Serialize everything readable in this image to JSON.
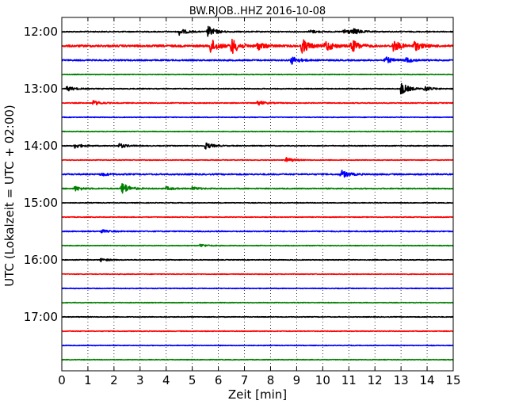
{
  "chart_data": {
    "type": "line",
    "title": "BW.RJOB..HHZ 2016-10-08",
    "xlabel": "Zeit  [min]",
    "ylabel": "UTC (Lokalzeit = UTC + 02:00)",
    "xlim": [
      0,
      15
    ],
    "x_ticks": [
      0,
      1,
      2,
      3,
      4,
      5,
      6,
      7,
      8,
      9,
      10,
      11,
      12,
      13,
      14,
      15
    ],
    "y_tick_labels": [
      "12:00",
      "13:00",
      "14:00",
      "15:00",
      "16:00",
      "17:00"
    ],
    "grid": "vertical dotted",
    "row_colors": [
      "#000000",
      "#ff0000",
      "#0000ff",
      "#008000"
    ],
    "traces": [
      {
        "start": "12:00",
        "color": "black",
        "noise": 0.6,
        "events": [
          {
            "t": 4.5,
            "amp": 4
          },
          {
            "t": 5.6,
            "amp": 7
          },
          {
            "t": 9.5,
            "amp": 2
          },
          {
            "t": 10.8,
            "amp": 4
          },
          {
            "t": 11.2,
            "amp": 3
          }
        ]
      },
      {
        "start": "12:15",
        "color": "red",
        "noise": 1.2,
        "events": [
          {
            "t": 5.7,
            "amp": 9
          },
          {
            "t": 6.5,
            "amp": 10
          },
          {
            "t": 7.5,
            "amp": 5
          },
          {
            "t": 9.2,
            "amp": 9
          },
          {
            "t": 10.1,
            "amp": 7
          },
          {
            "t": 11.1,
            "amp": 8
          },
          {
            "t": 12.7,
            "amp": 7
          },
          {
            "t": 13.5,
            "amp": 6
          }
        ]
      },
      {
        "start": "12:30",
        "color": "blue",
        "noise": 0.8,
        "events": [
          {
            "t": 8.8,
            "amp": 5
          },
          {
            "t": 12.4,
            "amp": 4
          },
          {
            "t": 13.2,
            "amp": 3
          }
        ]
      },
      {
        "start": "12:45",
        "color": "green",
        "noise": 0.4,
        "events": []
      },
      {
        "start": "13:00",
        "color": "black",
        "noise": 0.5,
        "events": [
          {
            "t": 0.2,
            "amp": 3
          },
          {
            "t": 13.0,
            "amp": 8
          },
          {
            "t": 13.9,
            "amp": 3
          }
        ]
      },
      {
        "start": "13:15",
        "color": "red",
        "noise": 0.5,
        "events": [
          {
            "t": 1.2,
            "amp": 3
          },
          {
            "t": 7.5,
            "amp": 3
          }
        ]
      },
      {
        "start": "13:30",
        "color": "blue",
        "noise": 0.4,
        "events": []
      },
      {
        "start": "13:45",
        "color": "green",
        "noise": 0.4,
        "events": []
      },
      {
        "start": "14:00",
        "color": "black",
        "noise": 0.5,
        "events": [
          {
            "t": 0.5,
            "amp": 3
          },
          {
            "t": 2.2,
            "amp": 3
          },
          {
            "t": 5.5,
            "amp": 4
          }
        ]
      },
      {
        "start": "14:15",
        "color": "red",
        "noise": 0.4,
        "events": [
          {
            "t": 8.6,
            "amp": 3
          }
        ]
      },
      {
        "start": "14:30",
        "color": "blue",
        "noise": 0.8,
        "events": [
          {
            "t": 1.5,
            "amp": 2
          },
          {
            "t": 10.7,
            "amp": 5
          }
        ]
      },
      {
        "start": "14:45",
        "color": "green",
        "noise": 0.6,
        "events": [
          {
            "t": 0.5,
            "amp": 3
          },
          {
            "t": 2.3,
            "amp": 8
          },
          {
            "t": 4.0,
            "amp": 2
          },
          {
            "t": 5.0,
            "amp": 2
          }
        ]
      },
      {
        "start": "15:00",
        "color": "black",
        "noise": 0.4,
        "events": []
      },
      {
        "start": "15:15",
        "color": "red",
        "noise": 0.4,
        "events": []
      },
      {
        "start": "15:30",
        "color": "blue",
        "noise": 0.6,
        "events": [
          {
            "t": 1.5,
            "amp": 2
          }
        ]
      },
      {
        "start": "15:45",
        "color": "green",
        "noise": 0.4,
        "events": [
          {
            "t": 5.3,
            "amp": 2
          }
        ]
      },
      {
        "start": "16:00",
        "color": "black",
        "noise": 0.4,
        "events": [
          {
            "t": 1.5,
            "amp": 2
          }
        ]
      },
      {
        "start": "16:15",
        "color": "red",
        "noise": 0.4,
        "events": []
      },
      {
        "start": "16:30",
        "color": "blue",
        "noise": 0.4,
        "events": []
      },
      {
        "start": "16:45",
        "color": "green",
        "noise": 0.4,
        "events": []
      },
      {
        "start": "17:00",
        "color": "black",
        "noise": 0.4,
        "events": []
      },
      {
        "start": "17:15",
        "color": "red",
        "noise": 0.4,
        "events": []
      },
      {
        "start": "17:30",
        "color": "blue",
        "noise": 0.4,
        "events": []
      },
      {
        "start": "17:45",
        "color": "green",
        "noise": 0.4,
        "events": []
      }
    ]
  }
}
